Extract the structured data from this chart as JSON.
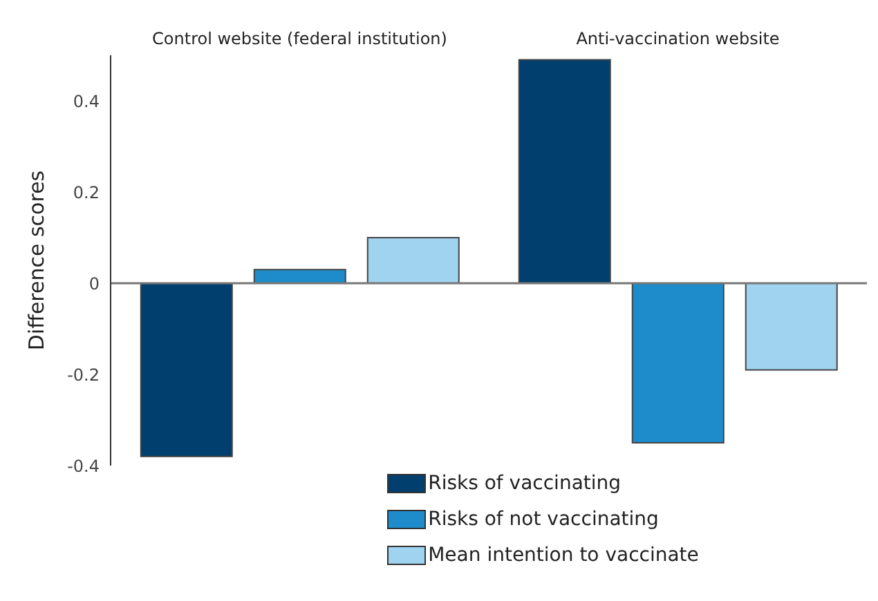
{
  "chart_data": {
    "type": "bar",
    "ylabel": "Difference scores",
    "categories": [
      "Control website (federal institution)",
      "Anti-vaccination website"
    ],
    "series": [
      {
        "name": "Risks of vaccinating",
        "color": "#003f6e",
        "values": [
          -0.38,
          0.49
        ]
      },
      {
        "name": "Risks of not vaccinating",
        "color": "#1e8bcb",
        "values": [
          0.03,
          -0.35
        ]
      },
      {
        "name": "Mean intention to vaccinate",
        "color": "#a0d3f0",
        "values": [
          0.1,
          -0.19
        ]
      }
    ],
    "ylim": [
      -0.4,
      0.5
    ],
    "yticks": [
      -0.4,
      -0.2,
      0,
      0.2,
      0.4
    ],
    "ref_lines": [
      {
        "axis": "y",
        "value": 0,
        "color": "#777777"
      }
    ],
    "legend": "bottom"
  }
}
